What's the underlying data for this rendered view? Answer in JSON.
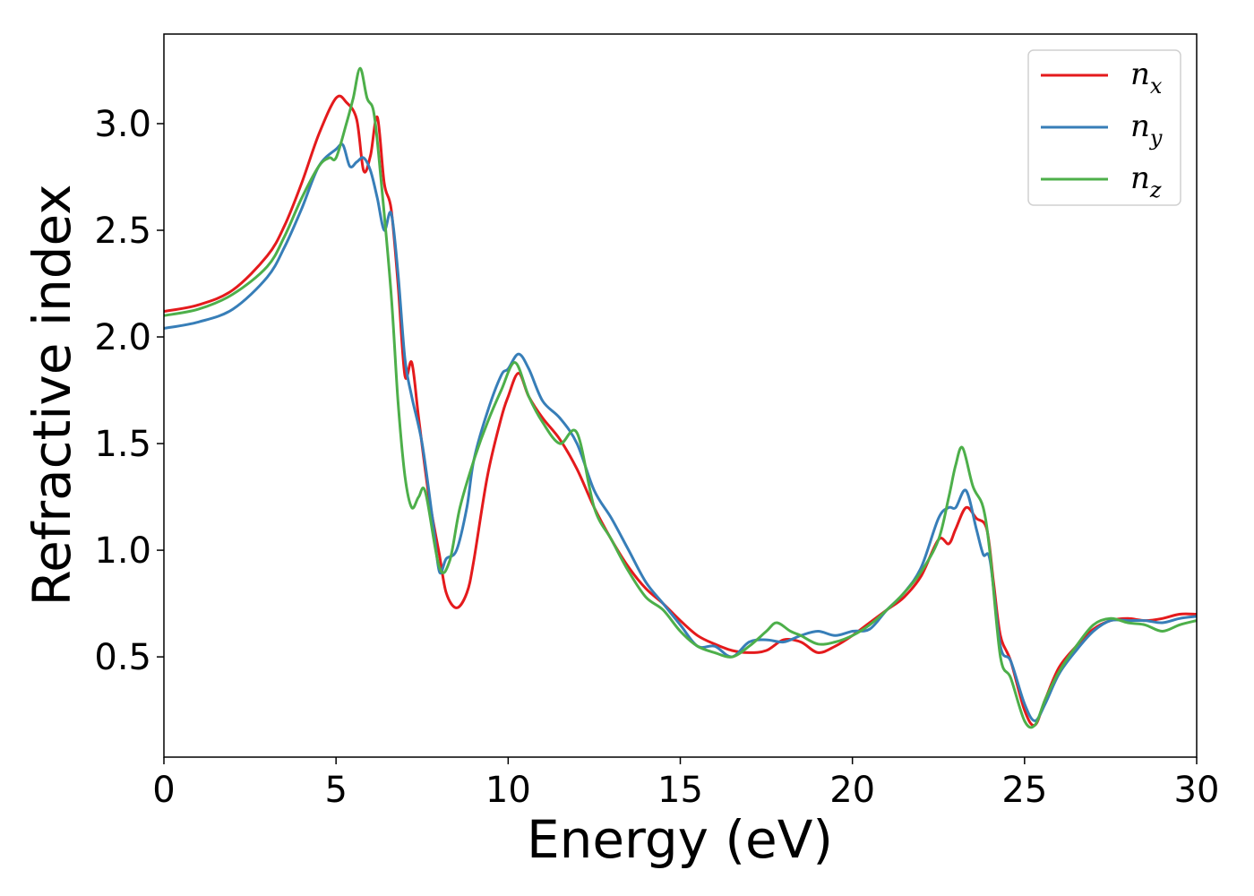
{
  "chart_data": {
    "type": "line",
    "title": "",
    "xlabel": "Energy (eV)",
    "ylabel": "Refractive index",
    "xlim": [
      0,
      30
    ],
    "ylim": [
      0.03,
      3.42
    ],
    "xticks": [
      "0",
      "5",
      "10",
      "15",
      "20",
      "25",
      "30"
    ],
    "yticks": [
      "0.5",
      "1.0",
      "1.5",
      "2.0",
      "2.5",
      "3.0"
    ],
    "grid": false,
    "legend_position": "top-right",
    "series": [
      {
        "name": "n",
        "subscript": "x",
        "color": "#e41a1c",
        "x": [
          0,
          1,
          2,
          3,
          3.5,
          4,
          4.5,
          5,
          5.3,
          5.6,
          5.8,
          6.0,
          6.2,
          6.4,
          6.6,
          6.8,
          7.0,
          7.2,
          7.4,
          7.7,
          8.0,
          8.2,
          8.5,
          8.8,
          9.0,
          9.4,
          9.8,
          10.0,
          10.3,
          10.6,
          11.0,
          11.5,
          12.0,
          12.5,
          13.0,
          13.5,
          14.0,
          14.5,
          15.0,
          15.5,
          16.0,
          16.5,
          17.0,
          17.5,
          18.0,
          18.5,
          19.0,
          19.5,
          20.0,
          20.5,
          21.0,
          21.5,
          22.0,
          22.5,
          22.8,
          23.0,
          23.3,
          23.6,
          23.9,
          24.1,
          24.3,
          24.6,
          25.0,
          25.3,
          25.6,
          26.0,
          26.5,
          27.0,
          27.5,
          28.0,
          28.5,
          29.0,
          29.5,
          30.0
        ],
        "y": [
          2.12,
          2.15,
          2.22,
          2.38,
          2.52,
          2.72,
          2.95,
          3.12,
          3.1,
          3.02,
          2.78,
          2.85,
          3.03,
          2.72,
          2.6,
          2.25,
          1.82,
          1.88,
          1.62,
          1.25,
          0.98,
          0.8,
          0.73,
          0.8,
          0.95,
          1.35,
          1.62,
          1.72,
          1.83,
          1.72,
          1.62,
          1.52,
          1.38,
          1.2,
          1.05,
          0.92,
          0.82,
          0.75,
          0.67,
          0.6,
          0.56,
          0.53,
          0.52,
          0.53,
          0.58,
          0.57,
          0.52,
          0.55,
          0.6,
          0.66,
          0.72,
          0.78,
          0.88,
          1.05,
          1.03,
          1.1,
          1.2,
          1.15,
          1.1,
          0.85,
          0.6,
          0.48,
          0.25,
          0.18,
          0.3,
          0.45,
          0.55,
          0.63,
          0.67,
          0.68,
          0.67,
          0.68,
          0.7,
          0.7
        ]
      },
      {
        "name": "n",
        "subscript": "y",
        "color": "#377eb8",
        "x": [
          0,
          1,
          2,
          3,
          3.5,
          4,
          4.5,
          5,
          5.2,
          5.4,
          5.6,
          5.8,
          6.0,
          6.2,
          6.4,
          6.6,
          6.8,
          7.0,
          7.2,
          7.5,
          7.8,
          8.0,
          8.2,
          8.5,
          8.8,
          9.0,
          9.4,
          9.8,
          10.0,
          10.3,
          10.6,
          11.0,
          11.5,
          12.0,
          12.5,
          13.0,
          13.5,
          14.0,
          14.5,
          15.0,
          15.5,
          16.0,
          16.5,
          17.0,
          17.5,
          18.0,
          18.5,
          19.0,
          19.5,
          20.0,
          20.5,
          21.0,
          21.5,
          22.0,
          22.5,
          22.8,
          23.0,
          23.3,
          23.6,
          23.8,
          24.0,
          24.3,
          24.6,
          25.0,
          25.3,
          25.6,
          26.0,
          26.5,
          27.0,
          27.5,
          28.0,
          28.5,
          29.0,
          29.5,
          30.0
        ],
        "y": [
          2.04,
          2.07,
          2.13,
          2.28,
          2.42,
          2.6,
          2.8,
          2.88,
          2.9,
          2.8,
          2.82,
          2.84,
          2.78,
          2.65,
          2.5,
          2.58,
          2.3,
          1.9,
          1.72,
          1.5,
          1.15,
          0.9,
          0.96,
          1.0,
          1.2,
          1.42,
          1.65,
          1.82,
          1.85,
          1.92,
          1.85,
          1.7,
          1.62,
          1.5,
          1.28,
          1.15,
          1.0,
          0.85,
          0.75,
          0.65,
          0.55,
          0.55,
          0.5,
          0.57,
          0.58,
          0.57,
          0.6,
          0.62,
          0.6,
          0.62,
          0.63,
          0.72,
          0.8,
          0.92,
          1.15,
          1.2,
          1.2,
          1.28,
          1.1,
          0.98,
          0.95,
          0.55,
          0.48,
          0.28,
          0.2,
          0.28,
          0.42,
          0.53,
          0.62,
          0.67,
          0.67,
          0.67,
          0.66,
          0.68,
          0.69
        ]
      },
      {
        "name": "n",
        "subscript": "z",
        "color": "#4daf4a",
        "x": [
          0,
          1,
          2,
          3,
          3.5,
          4,
          4.5,
          4.8,
          5.0,
          5.3,
          5.5,
          5.7,
          5.9,
          6.1,
          6.3,
          6.6,
          6.8,
          7.0,
          7.2,
          7.4,
          7.6,
          8.0,
          8.3,
          8.6,
          9.0,
          9.4,
          9.8,
          10.2,
          10.6,
          11.0,
          11.5,
          12.0,
          12.5,
          13.0,
          13.5,
          14.0,
          14.5,
          15.0,
          15.5,
          16.0,
          16.5,
          17.0,
          17.5,
          17.8,
          18.2,
          18.5,
          19.0,
          19.5,
          20.0,
          20.5,
          21.0,
          21.5,
          22.0,
          22.5,
          22.8,
          23.0,
          23.2,
          23.5,
          23.8,
          24.0,
          24.3,
          24.6,
          25.0,
          25.3,
          25.6,
          26.0,
          26.5,
          27.0,
          27.5,
          28.0,
          28.5,
          29.0,
          29.5,
          30.0
        ],
        "y": [
          2.1,
          2.13,
          2.2,
          2.33,
          2.47,
          2.65,
          2.8,
          2.84,
          2.84,
          3.0,
          3.12,
          3.26,
          3.12,
          3.05,
          2.75,
          2.2,
          1.7,
          1.35,
          1.2,
          1.25,
          1.27,
          0.92,
          0.95,
          1.2,
          1.42,
          1.6,
          1.75,
          1.88,
          1.72,
          1.6,
          1.5,
          1.55,
          1.2,
          1.05,
          0.9,
          0.78,
          0.72,
          0.62,
          0.55,
          0.52,
          0.5,
          0.55,
          0.62,
          0.66,
          0.62,
          0.6,
          0.56,
          0.57,
          0.6,
          0.65,
          0.72,
          0.8,
          0.9,
          1.05,
          1.25,
          1.4,
          1.48,
          1.3,
          1.2,
          0.98,
          0.5,
          0.4,
          0.2,
          0.18,
          0.3,
          0.43,
          0.55,
          0.65,
          0.68,
          0.66,
          0.65,
          0.62,
          0.65,
          0.67
        ]
      }
    ]
  }
}
